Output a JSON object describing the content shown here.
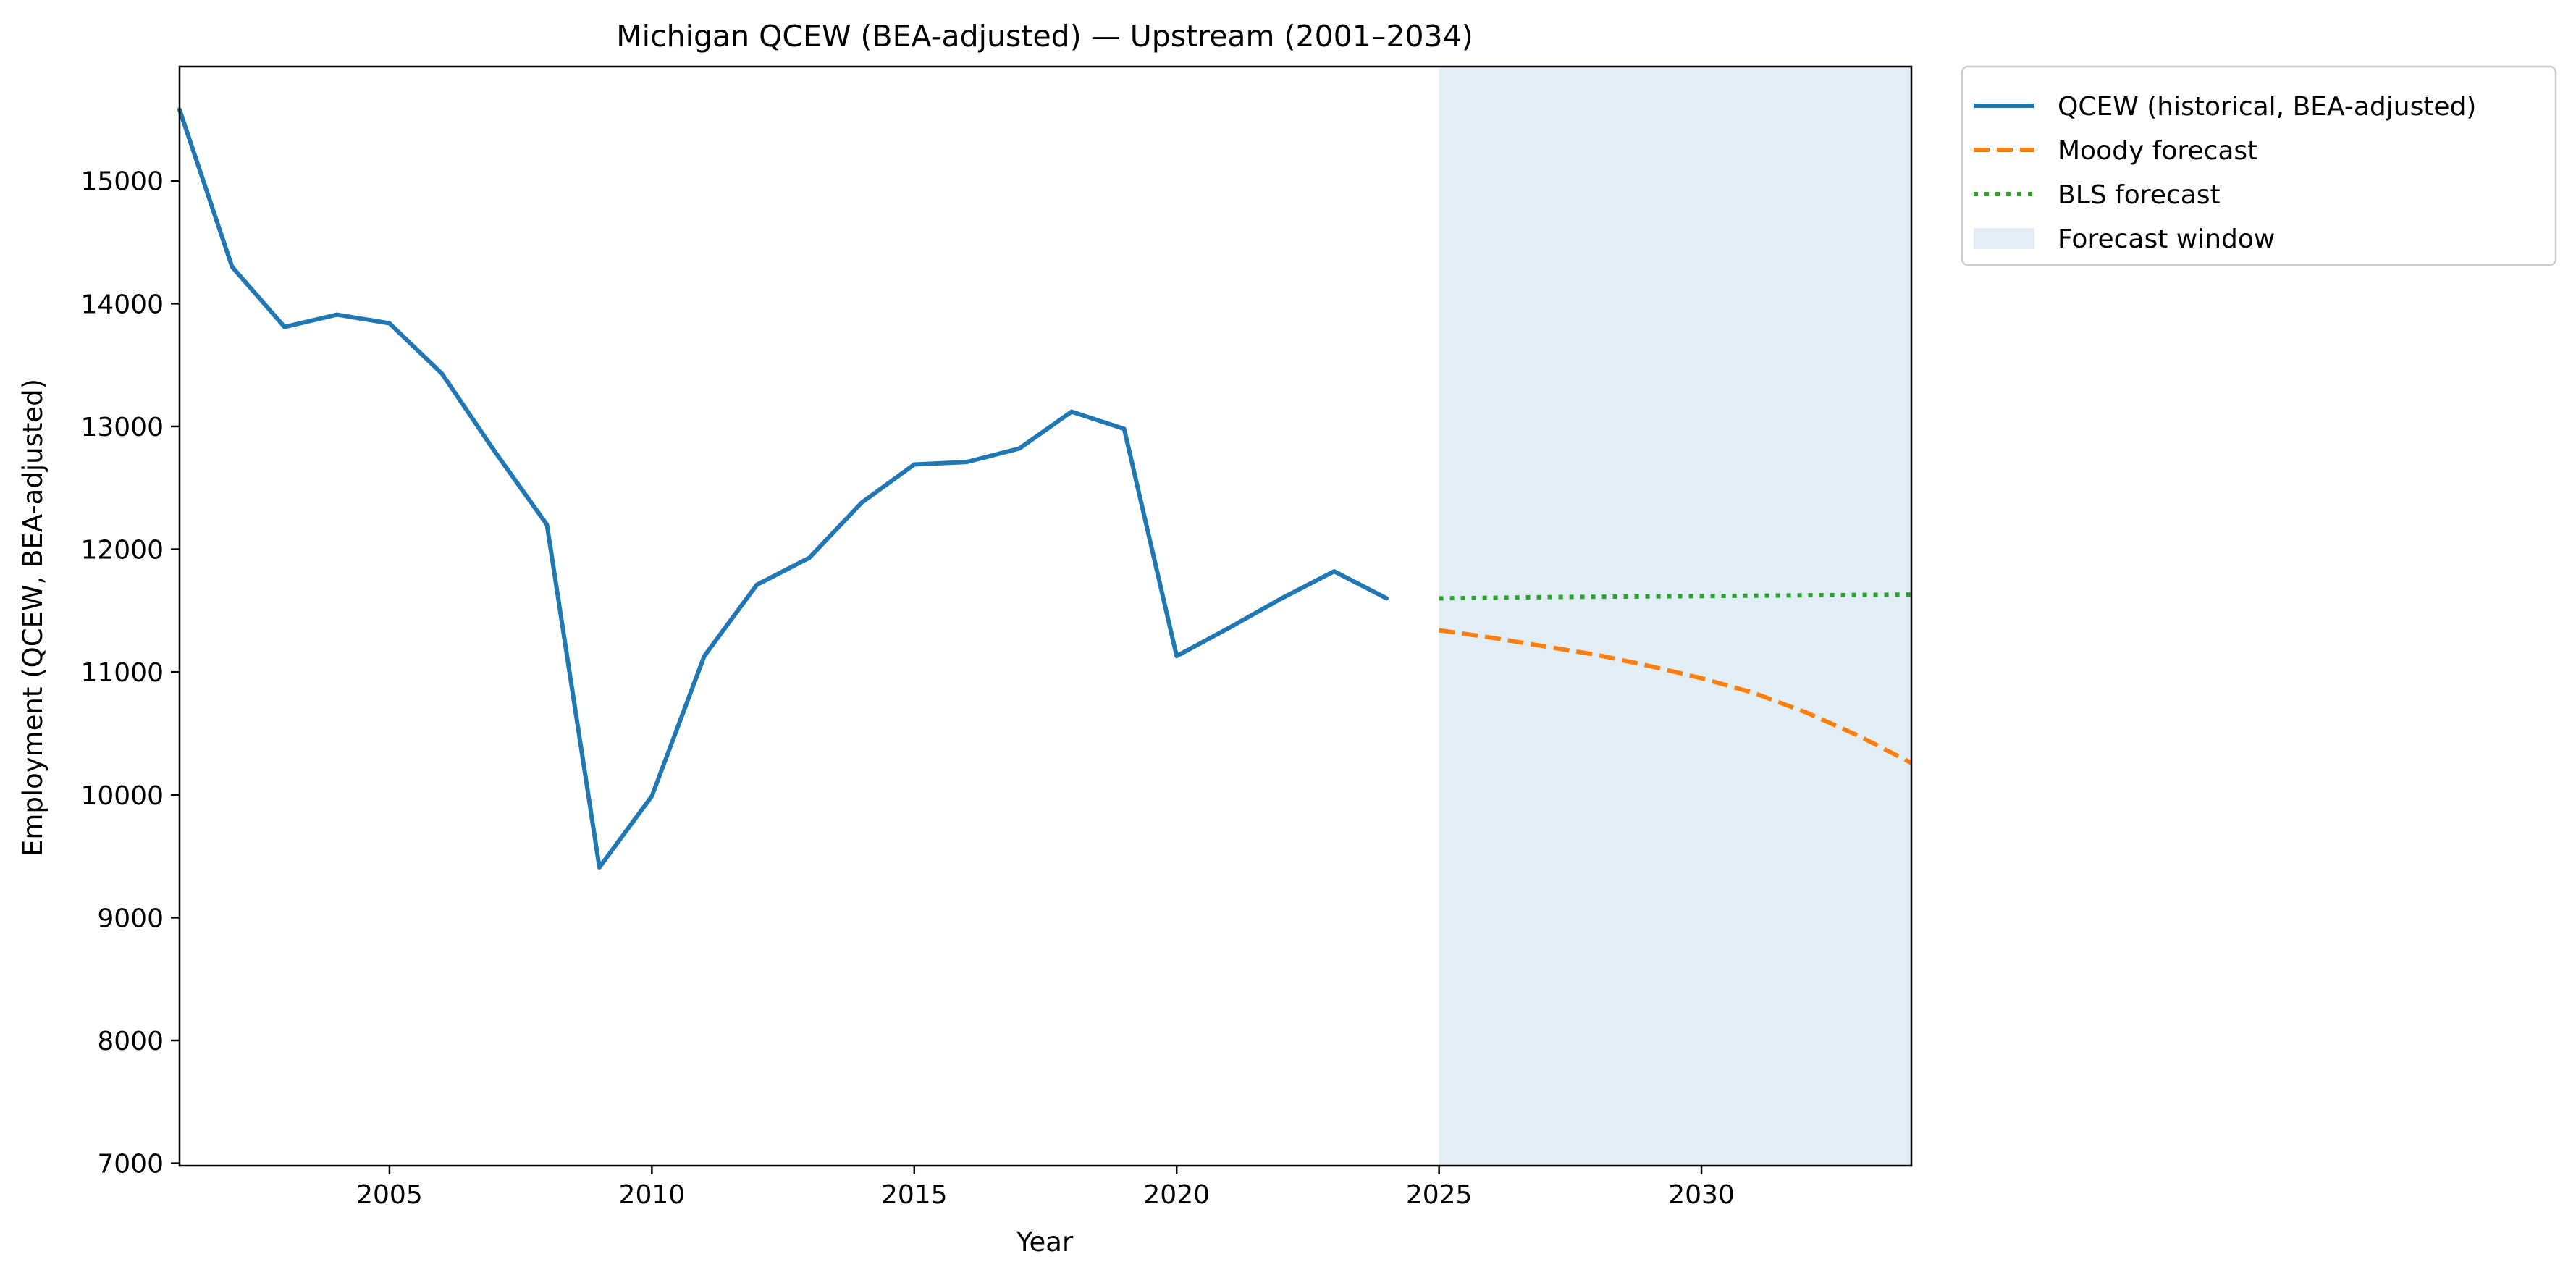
{
  "chart_data": {
    "type": "line",
    "title": "Michigan QCEW (BEA-adjusted) — Upstream (2001–2034)",
    "xlabel": "Year",
    "ylabel": "Employment (QCEW, BEA-adjusted)",
    "xlim": [
      2001,
      2034
    ],
    "ylim": [
      6980,
      15930
    ],
    "x_ticks": [
      2005,
      2010,
      2015,
      2020,
      2025,
      2030
    ],
    "y_ticks": [
      7000,
      8000,
      9000,
      10000,
      11000,
      12000,
      13000,
      14000,
      15000
    ],
    "grid": false,
    "legend_position": "outside-top-right",
    "forecast_window": {
      "label": "Forecast window",
      "x_start": 2025,
      "x_end": 2034,
      "color": "#e2eef5"
    },
    "series": [
      {
        "name": "QCEW (historical, BEA-adjusted)",
        "style": "solid",
        "color": "#1f77b4",
        "x": [
          2001,
          2002,
          2003,
          2004,
          2005,
          2006,
          2007,
          2008,
          2009,
          2010,
          2011,
          2012,
          2013,
          2014,
          2015,
          2016,
          2017,
          2018,
          2019,
          2020,
          2021,
          2022,
          2023,
          2024
        ],
        "y": [
          15580,
          14300,
          13810,
          13910,
          13840,
          13430,
          12800,
          12200,
          9410,
          9990,
          11130,
          11710,
          11930,
          12380,
          12690,
          12710,
          12820,
          13120,
          12980,
          11130,
          11360,
          11600,
          11820,
          11600
        ]
      },
      {
        "name": "Moody forecast",
        "style": "dashed",
        "color": "#ff7f0e",
        "x": [
          2025,
          2026,
          2027,
          2028,
          2029,
          2030,
          2031,
          2032,
          2033,
          2034
        ],
        "y": [
          11340,
          11280,
          11210,
          11140,
          11050,
          10950,
          10830,
          10670,
          10480,
          10260
        ]
      },
      {
        "name": "BLS forecast",
        "style": "dotted",
        "color": "#2ca02c",
        "x": [
          2025,
          2026,
          2027,
          2028,
          2029,
          2030,
          2031,
          2032,
          2033,
          2034
        ],
        "y": [
          11600,
          11605,
          11610,
          11613,
          11616,
          11619,
          11622,
          11625,
          11628,
          11631
        ]
      }
    ]
  }
}
